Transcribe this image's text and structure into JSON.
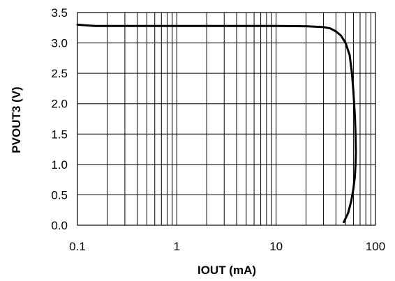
{
  "chart_data": {
    "type": "line",
    "title": "",
    "xlabel": "IOUT (mA)",
    "ylabel": "PVOUT3 (V)",
    "xscale": "log",
    "xlim": [
      0.1,
      100
    ],
    "ylim": [
      0.0,
      3.5
    ],
    "x_ticks": [
      0.1,
      1,
      10,
      100
    ],
    "x_tick_labels": [
      "0.1",
      "1",
      "10",
      "100"
    ],
    "y_ticks": [
      0.0,
      0.5,
      1.0,
      1.5,
      2.0,
      2.5,
      3.0,
      3.5
    ],
    "y_tick_labels": [
      "0.0",
      "0.5",
      "1.0",
      "1.5",
      "2.0",
      "2.5",
      "3.0",
      "3.5"
    ],
    "grid": true,
    "legend": "none",
    "color": "#000000",
    "series": [
      {
        "x": [
          0.1,
          0.12,
          0.15,
          0.2,
          0.5,
          1,
          2,
          5,
          10,
          20,
          30,
          35,
          40,
          45,
          50,
          55,
          58,
          60,
          62,
          63,
          63.5,
          63,
          62,
          60,
          57,
          53,
          48
        ],
        "y": [
          3.3,
          3.29,
          3.28,
          3.28,
          3.28,
          3.28,
          3.28,
          3.28,
          3.28,
          3.275,
          3.26,
          3.24,
          3.19,
          3.12,
          3.0,
          2.8,
          2.5,
          2.2,
          1.8,
          1.5,
          1.2,
          1.0,
          0.8,
          0.6,
          0.4,
          0.2,
          0.05
        ]
      }
    ]
  }
}
